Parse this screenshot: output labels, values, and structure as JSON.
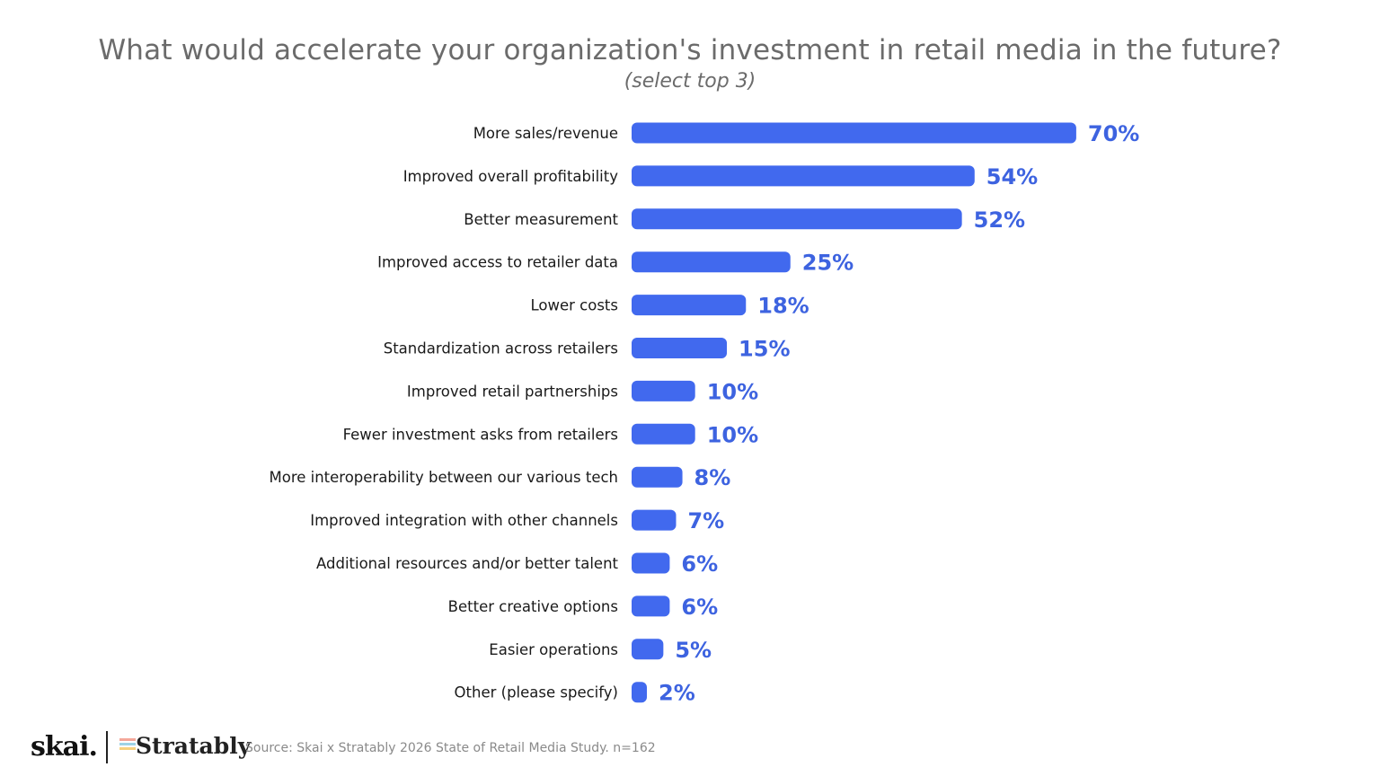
{
  "header": {
    "title": "What would accelerate your organization's investment in retail media in the future?",
    "subtitle": "(select top 3)"
  },
  "colors": {
    "bar": "#4169ee",
    "value_label": "#3d63e0",
    "category_label": "#1a1a1a",
    "title": "#6b6b6b"
  },
  "chart_data": {
    "type": "bar",
    "orientation": "horizontal",
    "categories": [
      "More sales/revenue",
      "Improved overall profitability",
      "Better measurement",
      "Improved access to retailer data",
      "Lower costs",
      "Standardization across retailers",
      "Improved retail partnerships",
      "Fewer investment asks from retailers",
      "More interoperability between our various tech",
      "Improved integration with other channels",
      "Additional resources and/or better talent",
      "Better creative options",
      "Easier operations",
      "Other (please specify)"
    ],
    "values": [
      70,
      54,
      52,
      25,
      18,
      15,
      10,
      10,
      8,
      7,
      6,
      6,
      5,
      2
    ],
    "value_labels": [
      "70%",
      "54%",
      "52%",
      "25%",
      "18%",
      "15%",
      "10%",
      "10%",
      "8%",
      "7%",
      "6%",
      "6%",
      "5%",
      "2%"
    ],
    "unit": "%",
    "title": "What would accelerate your organization's investment in retail media in the future?",
    "subtitle": "(select top 3)",
    "xlabel": "",
    "ylabel": "",
    "grid": false,
    "legend": "none"
  },
  "footer": {
    "logo_skai": "skai.",
    "logo_stratably": "Stratably",
    "source": "Source: Skai x Stratably 2026 State of Retail Media Study. n=162"
  }
}
